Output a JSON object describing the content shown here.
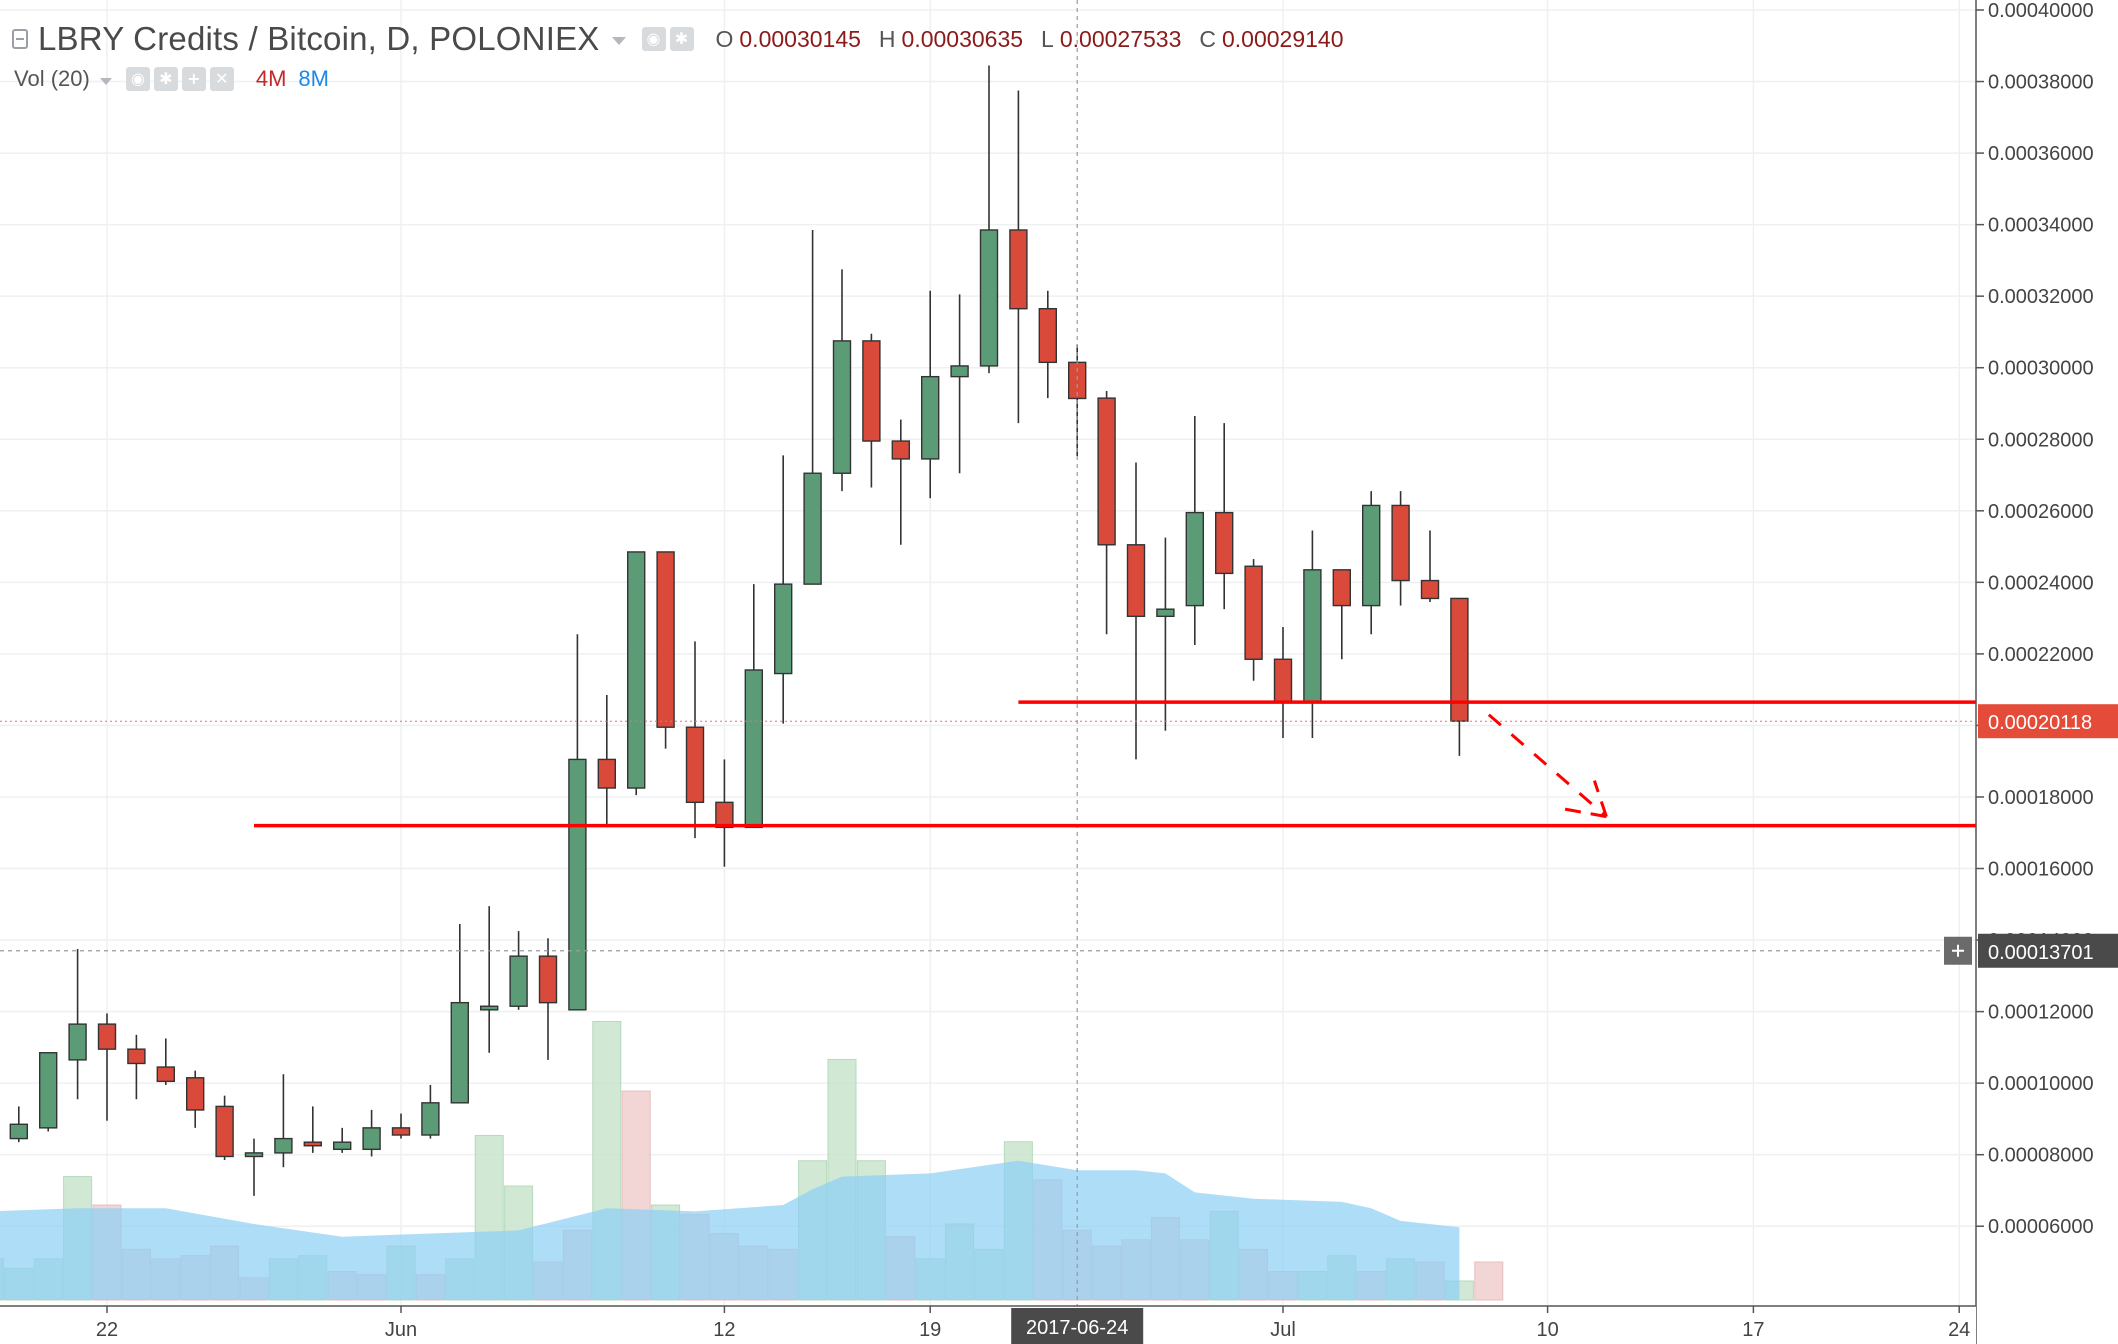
{
  "header": {
    "title": "LBRY Credits / Bitcoin, D, POLONIEX",
    "ohlc": [
      {
        "key": "O",
        "value": "0.00030145"
      },
      {
        "key": "H",
        "value": "0.00030635"
      },
      {
        "key": "L",
        "value": "0.00027533"
      },
      {
        "key": "C",
        "value": "0.00029140"
      }
    ],
    "volume_indicator": "Vol (20)",
    "volume_ma_a": "4M",
    "volume_ma_b": "8M"
  },
  "colors": {
    "up": "#5b9c77",
    "down": "#d94a3b",
    "up_volume": "#c9e5cd",
    "down_volume": "#f0d0d0",
    "volume_ma": "#8fd0f5",
    "annotation": "#ff0000",
    "last_price_bg": "#e54b39",
    "crosshair_bg": "#4a4a4a"
  },
  "chart_data": {
    "type": "candlestick",
    "title": "LBRY Credits / Bitcoin, D, POLONIEX",
    "y_axis": {
      "position": "right",
      "range": [
        5e-05,
        0.0004
      ],
      "ticks": [
        "0.00006000",
        "0.00008000",
        "0.00010000",
        "0.00012000",
        "0.00014000",
        "0.00016000",
        "0.00018000",
        "0.00020000",
        "0.00022000",
        "0.00024000",
        "0.00026000",
        "0.00028000",
        "0.00030000",
        "0.00032000",
        "0.00034000",
        "0.00036000",
        "0.00038000",
        "0.00040000"
      ]
    },
    "x_axis": {
      "ticks": [
        {
          "label": "22",
          "date": "2017-05-22"
        },
        {
          "label": "Jun",
          "date": "2017-06-01"
        },
        {
          "label": "12",
          "date": "2017-06-12"
        },
        {
          "label": "19",
          "date": "2017-06-19"
        },
        {
          "label": "Jul",
          "date": "2017-07-01"
        },
        {
          "label": "10",
          "date": "2017-07-10"
        },
        {
          "label": "17",
          "date": "2017-07-17"
        },
        {
          "label": "24",
          "date": "2017-07-24"
        }
      ],
      "range": [
        "2017-05-18",
        "2017-07-26"
      ],
      "crosshair_label": "2017-06-24"
    },
    "grid": true,
    "candles": [
      {
        "date": "2017-05-19",
        "o": 8.45e-05,
        "h": 9.35e-05,
        "l": 8.35e-05,
        "c": 8.85e-05
      },
      {
        "date": "2017-05-20",
        "o": 8.75e-05,
        "h": 0.0001085,
        "l": 8.65e-05,
        "c": 0.0001085
      },
      {
        "date": "2017-05-21",
        "o": 0.0001065,
        "h": 0.0001375,
        "l": 9.55e-05,
        "c": 0.0001165
      },
      {
        "date": "2017-05-22",
        "o": 0.0001165,
        "h": 0.0001195,
        "l": 8.95e-05,
        "c": 0.0001095
      },
      {
        "date": "2017-05-23",
        "o": 0.0001095,
        "h": 0.0001135,
        "l": 9.55e-05,
        "c": 0.0001055
      },
      {
        "date": "2017-05-24",
        "o": 0.0001045,
        "h": 0.0001125,
        "l": 9.95e-05,
        "c": 0.0001005
      },
      {
        "date": "2017-05-25",
        "o": 0.0001015,
        "h": 0.0001035,
        "l": 8.75e-05,
        "c": 9.25e-05
      },
      {
        "date": "2017-05-26",
        "o": 9.35e-05,
        "h": 9.65e-05,
        "l": 7.85e-05,
        "c": 7.95e-05
      },
      {
        "date": "2017-05-27",
        "o": 7.95e-05,
        "h": 8.45e-05,
        "l": 6.85e-05,
        "c": 8.05e-05
      },
      {
        "date": "2017-05-28",
        "o": 8.05e-05,
        "h": 0.0001025,
        "l": 7.65e-05,
        "c": 8.45e-05
      },
      {
        "date": "2017-05-29",
        "o": 8.35e-05,
        "h": 9.35e-05,
        "l": 8.05e-05,
        "c": 8.25e-05
      },
      {
        "date": "2017-05-30",
        "o": 8.15e-05,
        "h": 8.75e-05,
        "l": 8.05e-05,
        "c": 8.35e-05
      },
      {
        "date": "2017-05-31",
        "o": 8.15e-05,
        "h": 9.25e-05,
        "l": 7.95e-05,
        "c": 8.75e-05
      },
      {
        "date": "2017-06-01",
        "o": 8.75e-05,
        "h": 9.15e-05,
        "l": 8.45e-05,
        "c": 8.55e-05
      },
      {
        "date": "2017-06-02",
        "o": 8.55e-05,
        "h": 9.95e-05,
        "l": 8.45e-05,
        "c": 9.45e-05
      },
      {
        "date": "2017-06-03",
        "o": 9.45e-05,
        "h": 0.0001445,
        "l": 9.45e-05,
        "c": 0.0001225
      },
      {
        "date": "2017-06-04",
        "o": 0.0001205,
        "h": 0.0001495,
        "l": 0.0001085,
        "c": 0.0001215
      },
      {
        "date": "2017-06-05",
        "o": 0.0001215,
        "h": 0.0001425,
        "l": 0.0001205,
        "c": 0.0001355
      },
      {
        "date": "2017-06-06",
        "o": 0.0001355,
        "h": 0.0001405,
        "l": 0.0001065,
        "c": 0.0001225
      },
      {
        "date": "2017-06-07",
        "o": 0.0001205,
        "h": 0.0002255,
        "l": 0.0001205,
        "c": 0.0001905
      },
      {
        "date": "2017-06-08",
        "o": 0.0001905,
        "h": 0.0002085,
        "l": 0.0001715,
        "c": 0.0001825
      },
      {
        "date": "2017-06-09",
        "o": 0.0001825,
        "h": 0.0002485,
        "l": 0.0001805,
        "c": 0.0002485
      },
      {
        "date": "2017-06-10",
        "o": 0.0002485,
        "h": 0.0002485,
        "l": 0.0001935,
        "c": 0.0001995
      },
      {
        "date": "2017-06-11",
        "o": 0.0001995,
        "h": 0.0002235,
        "l": 0.0001685,
        "c": 0.0001785
      },
      {
        "date": "2017-06-12",
        "o": 0.0001785,
        "h": 0.0001905,
        "l": 0.0001605,
        "c": 0.0001715
      },
      {
        "date": "2017-06-13",
        "o": 0.0001715,
        "h": 0.0002395,
        "l": 0.0001715,
        "c": 0.0002155
      },
      {
        "date": "2017-06-14",
        "o": 0.0002145,
        "h": 0.0002755,
        "l": 0.0002005,
        "c": 0.0002395
      },
      {
        "date": "2017-06-15",
        "o": 0.0002395,
        "h": 0.0003385,
        "l": 0.0002395,
        "c": 0.0002705
      },
      {
        "date": "2017-06-16",
        "o": 0.0002705,
        "h": 0.0003275,
        "l": 0.0002655,
        "c": 0.0003075
      },
      {
        "date": "2017-06-17",
        "o": 0.0003075,
        "h": 0.0003095,
        "l": 0.0002665,
        "c": 0.0002795
      },
      {
        "date": "2017-06-18",
        "o": 0.0002795,
        "h": 0.0002855,
        "l": 0.0002505,
        "c": 0.0002745
      },
      {
        "date": "2017-06-19",
        "o": 0.0002745,
        "h": 0.0003215,
        "l": 0.0002635,
        "c": 0.0002975
      },
      {
        "date": "2017-06-20",
        "o": 0.0002975,
        "h": 0.0003205,
        "l": 0.0002705,
        "c": 0.0003005
      },
      {
        "date": "2017-06-21",
        "o": 0.0003005,
        "h": 0.0003845,
        "l": 0.0002985,
        "c": 0.0003385
      },
      {
        "date": "2017-06-22",
        "o": 0.0003385,
        "h": 0.0003775,
        "l": 0.0002845,
        "c": 0.0003165
      },
      {
        "date": "2017-06-23",
        "o": 0.0003165,
        "h": 0.0003215,
        "l": 0.0002915,
        "c": 0.0003015
      },
      {
        "date": "2017-06-24",
        "o": 0.0003015,
        "h": 0.0003064,
        "l": 0.0002753,
        "c": 0.0002914
      },
      {
        "date": "2017-06-25",
        "o": 0.0002915,
        "h": 0.0002935,
        "l": 0.0002255,
        "c": 0.0002505
      },
      {
        "date": "2017-06-26",
        "o": 0.0002505,
        "h": 0.0002735,
        "l": 0.0001905,
        "c": 0.0002305
      },
      {
        "date": "2017-06-27",
        "o": 0.0002305,
        "h": 0.0002525,
        "l": 0.0001985,
        "c": 0.0002325
      },
      {
        "date": "2017-06-28",
        "o": 0.0002335,
        "h": 0.0002865,
        "l": 0.0002225,
        "c": 0.0002595
      },
      {
        "date": "2017-06-29",
        "o": 0.0002595,
        "h": 0.0002845,
        "l": 0.0002325,
        "c": 0.0002425
      },
      {
        "date": "2017-06-30",
        "o": 0.0002445,
        "h": 0.0002465,
        "l": 0.0002125,
        "c": 0.0002185
      },
      {
        "date": "2017-07-01",
        "o": 0.0002185,
        "h": 0.0002275,
        "l": 0.0001965,
        "c": 0.0002065
      },
      {
        "date": "2017-07-02",
        "o": 0.0002065,
        "h": 0.0002545,
        "l": 0.0001965,
        "c": 0.0002435
      },
      {
        "date": "2017-07-03",
        "o": 0.0002435,
        "h": 0.0002435,
        "l": 0.0002185,
        "c": 0.0002335
      },
      {
        "date": "2017-07-04",
        "o": 0.0002335,
        "h": 0.0002655,
        "l": 0.0002255,
        "c": 0.0002615
      },
      {
        "date": "2017-07-05",
        "o": 0.0002615,
        "h": 0.0002655,
        "l": 0.0002335,
        "c": 0.0002405
      },
      {
        "date": "2017-07-06",
        "o": 0.0002405,
        "h": 0.0002545,
        "l": 0.0002345,
        "c": 0.0002355
      },
      {
        "date": "2017-07-07",
        "o": 0.0002355,
        "h": 0.0002355,
        "l": 0.0001915,
        "c": 0.0002012
      }
    ],
    "volume": {
      "label": "Vol (20)",
      "bars": [
        {
          "date": "2017-05-18",
          "v": 6.5,
          "up": true
        },
        {
          "date": "2017-05-19",
          "v": 5.0,
          "up": true
        },
        {
          "date": "2017-05-20",
          "v": 6.5,
          "up": true
        },
        {
          "date": "2017-05-21",
          "v": 19.5,
          "up": true
        },
        {
          "date": "2017-05-22",
          "v": 15.0,
          "up": false
        },
        {
          "date": "2017-05-23",
          "v": 8.0,
          "up": false
        },
        {
          "date": "2017-05-24",
          "v": 6.5,
          "up": false
        },
        {
          "date": "2017-05-25",
          "v": 7.0,
          "up": false
        },
        {
          "date": "2017-05-26",
          "v": 8.5,
          "up": false
        },
        {
          "date": "2017-05-27",
          "v": 3.5,
          "up": false
        },
        {
          "date": "2017-05-28",
          "v": 6.5,
          "up": true
        },
        {
          "date": "2017-05-29",
          "v": 7.0,
          "up": true
        },
        {
          "date": "2017-05-30",
          "v": 4.5,
          "up": false
        },
        {
          "date": "2017-05-31",
          "v": 4.0,
          "up": false
        },
        {
          "date": "2017-06-01",
          "v": 8.5,
          "up": true
        },
        {
          "date": "2017-06-02",
          "v": 4.0,
          "up": false
        },
        {
          "date": "2017-06-03",
          "v": 6.5,
          "up": true
        },
        {
          "date": "2017-06-04",
          "v": 26.0,
          "up": true
        },
        {
          "date": "2017-06-05",
          "v": 18.0,
          "up": true
        },
        {
          "date": "2017-06-06",
          "v": 6.0,
          "up": false
        },
        {
          "date": "2017-06-07",
          "v": 11.0,
          "up": false
        },
        {
          "date": "2017-06-08",
          "v": 44.0,
          "up": true
        },
        {
          "date": "2017-06-09",
          "v": 33.0,
          "up": false
        },
        {
          "date": "2017-06-10",
          "v": 15.0,
          "up": true
        },
        {
          "date": "2017-06-11",
          "v": 13.5,
          "up": false
        },
        {
          "date": "2017-06-12",
          "v": 10.5,
          "up": false
        },
        {
          "date": "2017-06-13",
          "v": 8.5,
          "up": false
        },
        {
          "date": "2017-06-14",
          "v": 8.0,
          "up": false
        },
        {
          "date": "2017-06-15",
          "v": 22.0,
          "up": true
        },
        {
          "date": "2017-06-16",
          "v": 38.0,
          "up": true
        },
        {
          "date": "2017-06-17",
          "v": 22.0,
          "up": true
        },
        {
          "date": "2017-06-18",
          "v": 10.0,
          "up": false
        },
        {
          "date": "2017-06-19",
          "v": 6.5,
          "up": true
        },
        {
          "date": "2017-06-20",
          "v": 12.0,
          "up": true
        },
        {
          "date": "2017-06-21",
          "v": 8.0,
          "up": true
        },
        {
          "date": "2017-06-22",
          "v": 25.0,
          "up": true
        },
        {
          "date": "2017-06-23",
          "v": 19.0,
          "up": false
        },
        {
          "date": "2017-06-24",
          "v": 11.0,
          "up": false
        },
        {
          "date": "2017-06-25",
          "v": 8.5,
          "up": false
        },
        {
          "date": "2017-06-26",
          "v": 9.5,
          "up": false
        },
        {
          "date": "2017-06-27",
          "v": 13.0,
          "up": false
        },
        {
          "date": "2017-06-28",
          "v": 9.5,
          "up": false
        },
        {
          "date": "2017-06-29",
          "v": 14.0,
          "up": true
        },
        {
          "date": "2017-06-30",
          "v": 8.0,
          "up": false
        },
        {
          "date": "2017-07-01",
          "v": 4.5,
          "up": false
        },
        {
          "date": "2017-07-02",
          "v": 4.5,
          "up": true
        },
        {
          "date": "2017-07-03",
          "v": 7.0,
          "up": true
        },
        {
          "date": "2017-07-04",
          "v": 4.5,
          "up": false
        },
        {
          "date": "2017-07-05",
          "v": 6.5,
          "up": true
        },
        {
          "date": "2017-07-06",
          "v": 6.0,
          "up": false
        },
        {
          "date": "2017-07-07",
          "v": 3.0,
          "up": true
        },
        {
          "date": "2017-07-08",
          "v": 6.0,
          "up": false
        }
      ],
      "ma": [
        {
          "date": "2017-05-18",
          "v": 14.0
        },
        {
          "date": "2017-05-21",
          "v": 14.5
        },
        {
          "date": "2017-05-24",
          "v": 14.5
        },
        {
          "date": "2017-05-27",
          "v": 12.0
        },
        {
          "date": "2017-05-30",
          "v": 10.0
        },
        {
          "date": "2017-06-02",
          "v": 10.5
        },
        {
          "date": "2017-06-05",
          "v": 11.0
        },
        {
          "date": "2017-06-08",
          "v": 14.5
        },
        {
          "date": "2017-06-11",
          "v": 14.0
        },
        {
          "date": "2017-06-14",
          "v": 15.0
        },
        {
          "date": "2017-06-15",
          "v": 17.5
        },
        {
          "date": "2017-06-16",
          "v": 19.5
        },
        {
          "date": "2017-06-19",
          "v": 20.0
        },
        {
          "date": "2017-06-22",
          "v": 22.0
        },
        {
          "date": "2017-06-24",
          "v": 20.5
        },
        {
          "date": "2017-06-26",
          "v": 20.5
        },
        {
          "date": "2017-06-27",
          "v": 20.0
        },
        {
          "date": "2017-06-28",
          "v": 17.0
        },
        {
          "date": "2017-06-30",
          "v": 16.0
        },
        {
          "date": "2017-07-03",
          "v": 15.5
        },
        {
          "date": "2017-07-04",
          "v": 14.5
        },
        {
          "date": "2017-07-05",
          "v": 12.5
        },
        {
          "date": "2017-07-07",
          "v": 11.5
        }
      ],
      "max": 44
    },
    "annotations": {
      "horizontal_lines": [
        {
          "name": "resistance-line",
          "price": 0.0002065,
          "from": "2017-06-22",
          "to": "2017-07-25"
        },
        {
          "name": "support-line",
          "price": 0.000172,
          "from": "2017-05-27",
          "to": "2017-07-26"
        }
      ],
      "projection_arrow": {
        "from": {
          "date": "2017-07-08",
          "price": 0.000203
        },
        "to": {
          "date": "2017-07-12",
          "price": 0.0001745
        }
      }
    },
    "price_labels": {
      "last_price": {
        "text": "0.00020118",
        "price": 0.00020118
      },
      "crosshair_price": {
        "text": "0.00013701",
        "price": 0.00013701
      }
    }
  }
}
